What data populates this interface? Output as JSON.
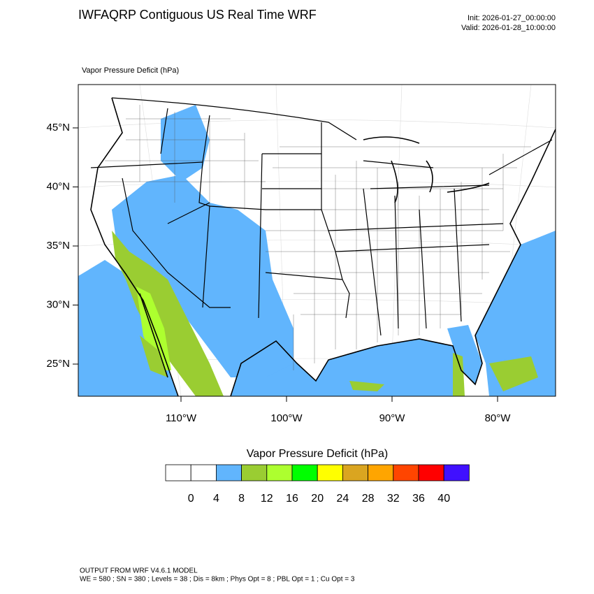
{
  "header": {
    "title": "IWFAQRP Contiguous US Real Time WRF",
    "init": "Init: 2026-01-27_00:00:00",
    "valid": "Valid: 2026-01-28_10:00:00"
  },
  "map": {
    "field_label": "Vapor Pressure Deficit   (hPa)",
    "lat_ticks": [
      {
        "value": 45,
        "label": "45°N"
      },
      {
        "value": 40,
        "label": "40°N"
      },
      {
        "value": 35,
        "label": "35°N"
      },
      {
        "value": 30,
        "label": "30°N"
      },
      {
        "value": 25,
        "label": "25°N"
      }
    ],
    "lon_ticks": [
      {
        "value": -110,
        "label": "110°W"
      },
      {
        "value": -100,
        "label": "100°W"
      },
      {
        "value": -90,
        "label": "90°W"
      },
      {
        "value": -80,
        "label": "80°W"
      }
    ]
  },
  "colorbar": {
    "title": "Vapor Pressure Deficit  (hPa)",
    "levels": [
      0,
      4,
      8,
      12,
      16,
      20,
      24,
      28,
      32,
      36,
      40
    ],
    "colors": [
      "#ffffff",
      "#ffffff",
      "#61b5fd",
      "#9acd32",
      "#adff2f",
      "#00ff00",
      "#ffff00",
      "#daa520",
      "#ffa500",
      "#ff4500",
      "#ff0000",
      "#4010ff"
    ]
  },
  "footer": [
    "OUTPUT FROM WRF V4.6.1 MODEL",
    "WE = 580 ; SN = 380 ; Levels = 38 ; Dis = 8km ; Phys Opt = 8 ; PBL Opt = 1 ; Cu Opt = 3"
  ]
}
